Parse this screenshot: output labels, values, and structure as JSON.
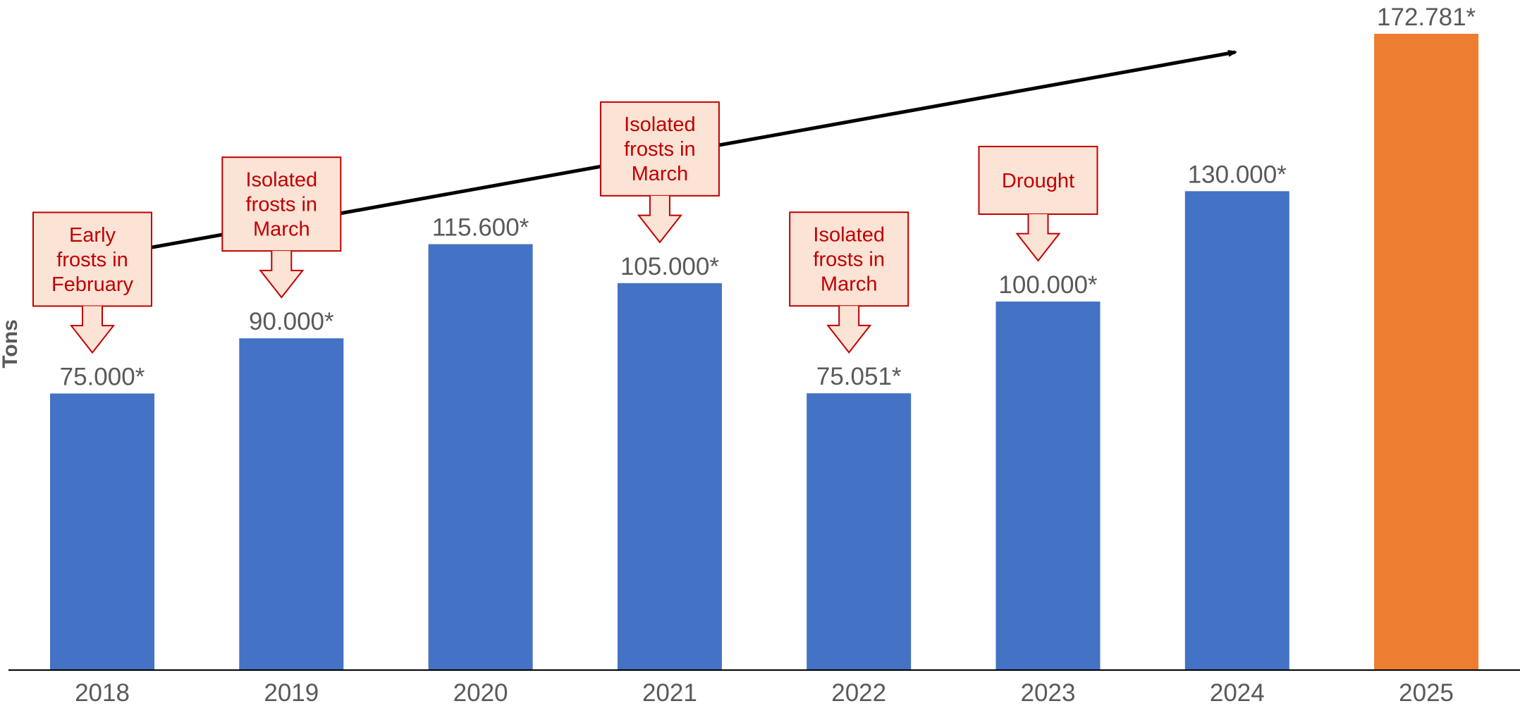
{
  "chart_data": {
    "type": "bar",
    "ylabel": "Tons",
    "xlabel": "",
    "title": "",
    "categories": [
      "2018",
      "2019",
      "2020",
      "2021",
      "2022",
      "2023",
      "2024",
      "2025"
    ],
    "values": [
      75000,
      90000,
      115600,
      105000,
      75051,
      100000,
      130000,
      172781
    ],
    "value_labels": [
      "75.000*",
      "90.000*",
      "115.600*",
      "105.000*",
      "75.051*",
      "100.000*",
      "130.000*",
      "172.781*"
    ],
    "ylim": [
      0,
      172781
    ],
    "grid": false,
    "legend": "none",
    "colors": {
      "bar": "#4472C4",
      "highlight_bar": "#ED7D31",
      "label_text": "#595959",
      "callout_fill": "#FBE3D6",
      "callout_border": "#C00000",
      "trend_arrow": "#000000",
      "axis_line": "#000000"
    },
    "highlight_index": 7,
    "annotations": [
      {
        "category": "2018",
        "lines": [
          "Early",
          "frosts in",
          "February"
        ]
      },
      {
        "category": "2019",
        "lines": [
          "Isolated",
          "frosts in",
          "March"
        ]
      },
      {
        "category": "2021",
        "lines": [
          "Isolated",
          "frosts in",
          "March"
        ]
      },
      {
        "category": "2022",
        "lines": [
          "Isolated",
          "frosts in",
          "March"
        ]
      },
      {
        "category": "2023",
        "lines": [
          "Drought"
        ]
      }
    ],
    "trend_arrow": true
  }
}
